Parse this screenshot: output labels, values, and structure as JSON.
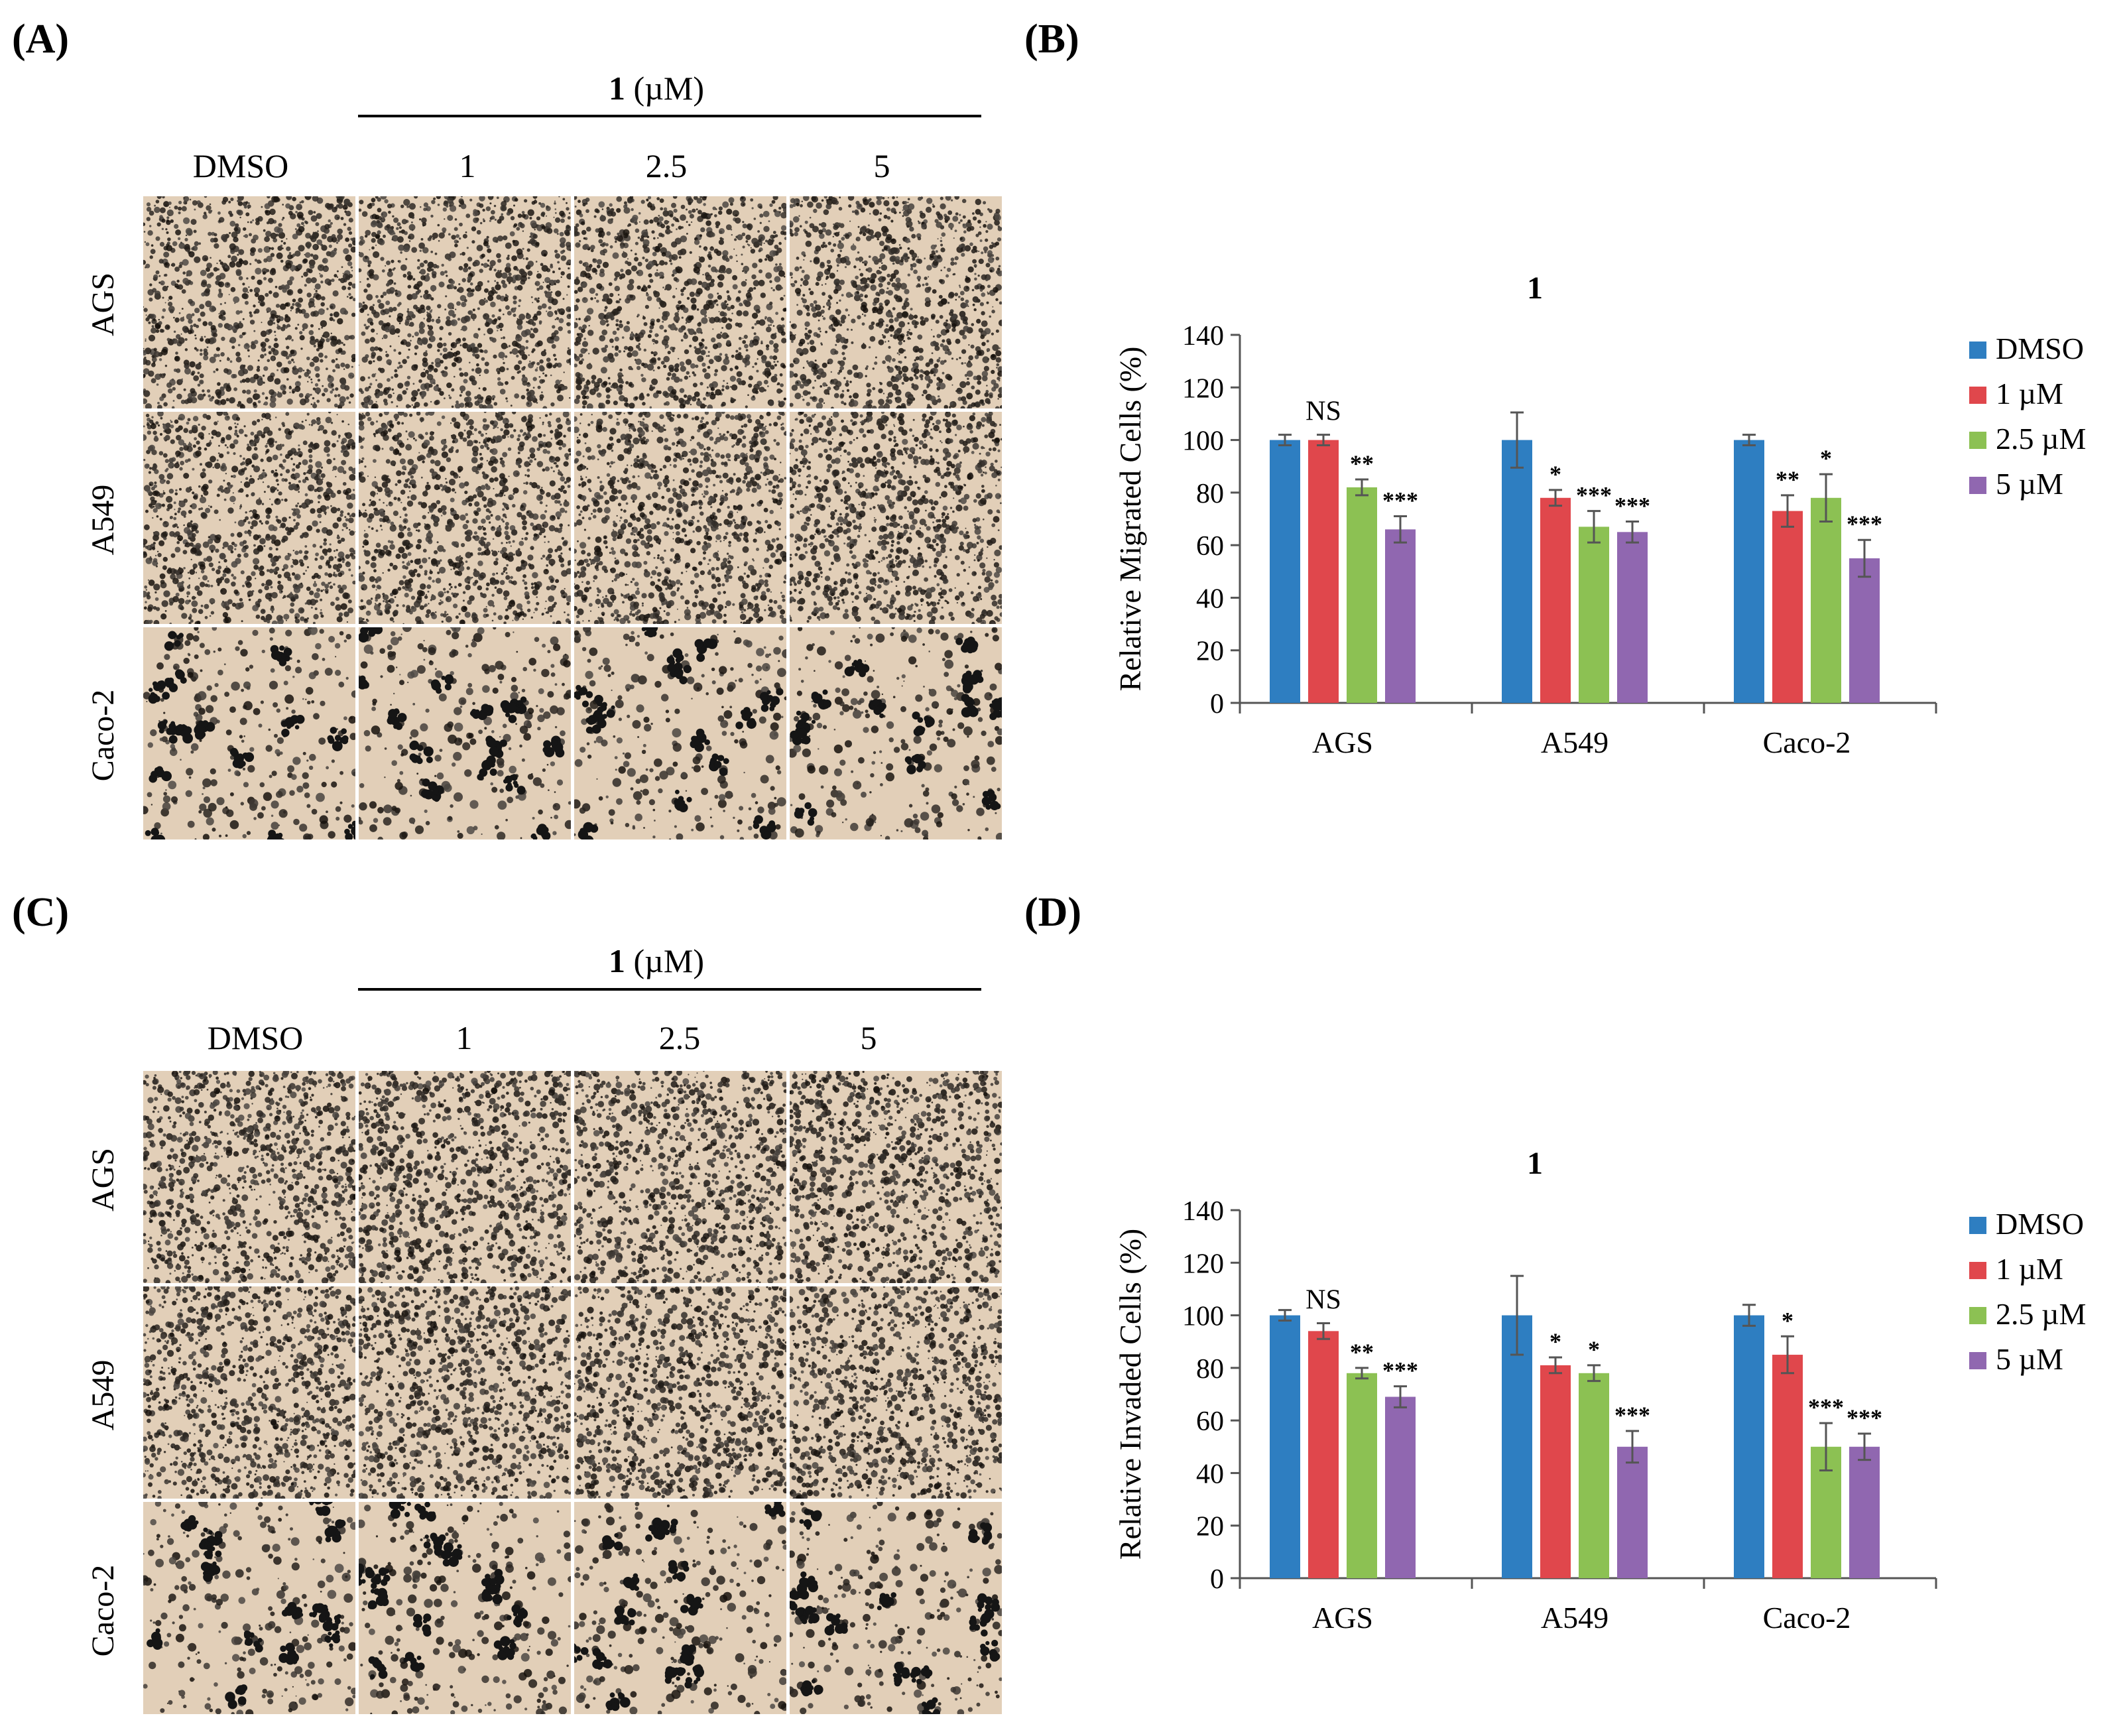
{
  "panels": {
    "A": {
      "label": "(A)"
    },
    "B": {
      "label": "(B)"
    },
    "C": {
      "label": "(C)"
    },
    "D": {
      "label": "(D)"
    }
  },
  "micrographs": [
    {
      "header_bold": "1",
      "header_unit": "(µM)",
      "columns": [
        "DMSO",
        "1",
        "2.5",
        "5"
      ],
      "rows": [
        "AGS",
        "A549",
        "Caco-2"
      ]
    },
    {
      "header_bold": "1",
      "header_unit": "(µM)",
      "columns": [
        "DMSO",
        "1",
        "2.5",
        "5"
      ],
      "rows": [
        "AGS",
        "A549",
        "Caco-2"
      ]
    }
  ],
  "chart_data": [
    {
      "type": "bar",
      "title": "1",
      "xlabel": "",
      "ylabel": "Relative Migrated Cells (%)",
      "ylim": [
        0,
        140
      ],
      "yticks": [
        0,
        20,
        40,
        60,
        80,
        100,
        120,
        140
      ],
      "categories": [
        "AGS",
        "A549",
        "Caco-2"
      ],
      "series": [
        {
          "name": "DMSO",
          "color": "#2e7ec1",
          "values": [
            100,
            100,
            100
          ],
          "errors": [
            2,
            10.5,
            2
          ],
          "significance": [
            "",
            "",
            ""
          ]
        },
        {
          "name": "1 µM",
          "color": "#e0474c",
          "values": [
            100,
            78,
            73
          ],
          "errors": [
            2,
            3,
            6
          ],
          "significance": [
            "NS",
            "*",
            "**"
          ]
        },
        {
          "name": "2.5 µM",
          "color": "#8cc153",
          "values": [
            82,
            67,
            78
          ],
          "errors": [
            3,
            6,
            9
          ],
          "significance": [
            "**",
            "***",
            "*"
          ]
        },
        {
          "name": "5 µM",
          "color": "#9067b0",
          "values": [
            66,
            65,
            55
          ],
          "errors": [
            5,
            4,
            7
          ],
          "significance": [
            "***",
            "***",
            "***"
          ]
        }
      ],
      "legend": "right",
      "grid": false
    },
    {
      "type": "bar",
      "title": "1",
      "xlabel": "",
      "ylabel": "Relative Invaded Cells (%)",
      "ylim": [
        0,
        140
      ],
      "yticks": [
        0,
        20,
        40,
        60,
        80,
        100,
        120,
        140
      ],
      "categories": [
        "AGS",
        "A549",
        "Caco-2"
      ],
      "series": [
        {
          "name": "DMSO",
          "color": "#2e7ec1",
          "values": [
            100,
            100,
            100
          ],
          "errors": [
            2,
            15,
            4
          ],
          "significance": [
            "",
            "",
            ""
          ]
        },
        {
          "name": "1 µM",
          "color": "#e0474c",
          "values": [
            94,
            81,
            85
          ],
          "errors": [
            3,
            3,
            7
          ],
          "significance": [
            "NS",
            "*",
            "*"
          ]
        },
        {
          "name": "2.5 µM",
          "color": "#8cc153",
          "values": [
            78,
            78,
            50
          ],
          "errors": [
            2,
            3,
            9
          ],
          "significance": [
            "**",
            "*",
            "***"
          ]
        },
        {
          "name": "5 µM",
          "color": "#9067b0",
          "values": [
            69,
            50,
            50
          ],
          "errors": [
            4,
            6,
            5
          ],
          "significance": [
            "***",
            "***",
            "***"
          ]
        }
      ],
      "legend": "right",
      "grid": false
    }
  ]
}
